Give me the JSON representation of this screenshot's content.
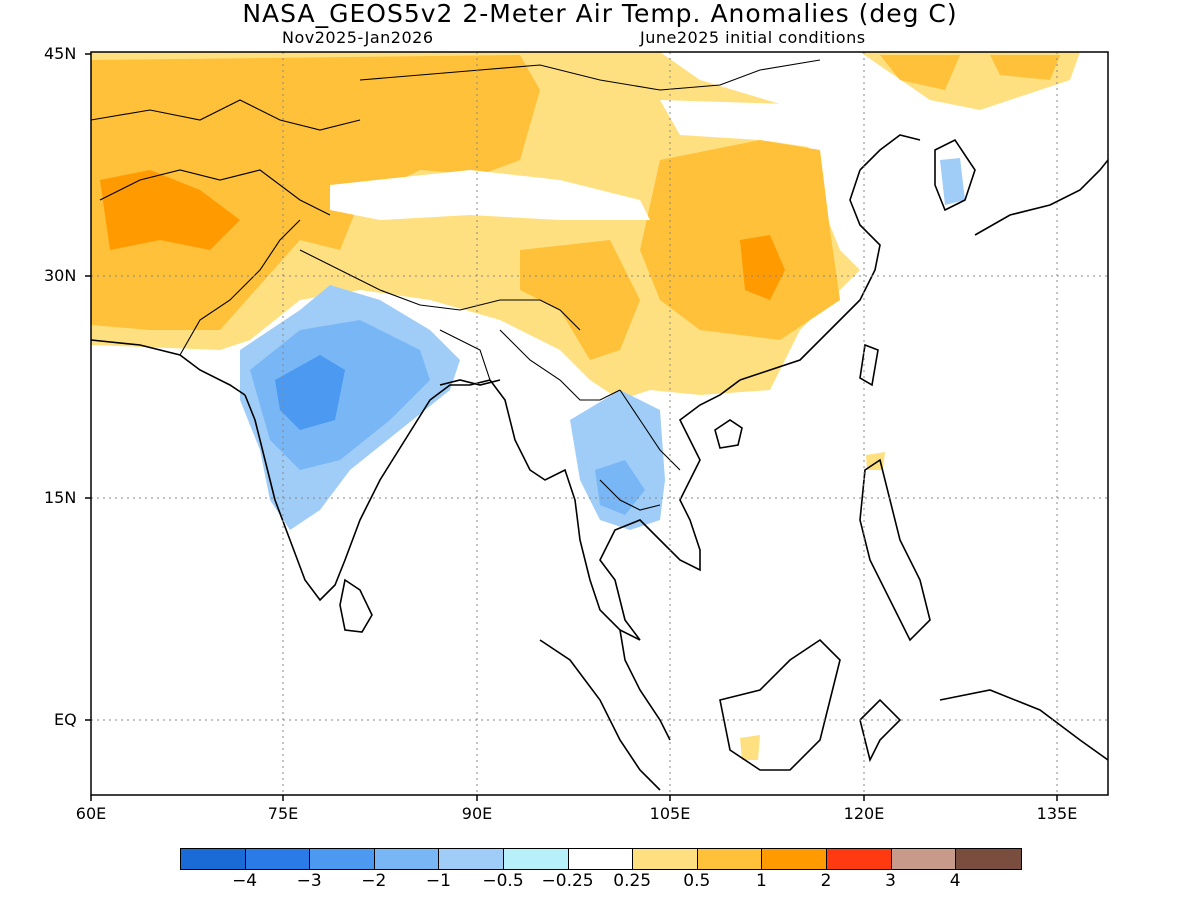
{
  "title": "NASA_GEOS5v2 2-Meter Air Temp. Anomalies (deg C)",
  "subtitle_left": "Nov2025-Jan2026",
  "subtitle_right": "June2025 initial conditions",
  "lat_labels": [
    "45N",
    "30N",
    "15N",
    "EQ"
  ],
  "lon_labels": [
    "60E",
    "75E",
    "90E",
    "105E",
    "120E",
    "135E"
  ],
  "colorbar": {
    "colors": [
      "#1a6bd6",
      "#2a7ae8",
      "#4b99f0",
      "#78b6f5",
      "#9fcdf8",
      "#b8f0fa",
      "#ffffff",
      "#ffe080",
      "#ffc03a",
      "#ff9a00",
      "#ff3a10",
      "#c89a8a",
      "#7a4e3e"
    ],
    "labels": [
      "-4",
      "-3",
      "-2",
      "-1",
      "-0.5",
      "-0.25",
      "0.25",
      "0.5",
      "1",
      "2",
      "3",
      "4"
    ]
  }
}
